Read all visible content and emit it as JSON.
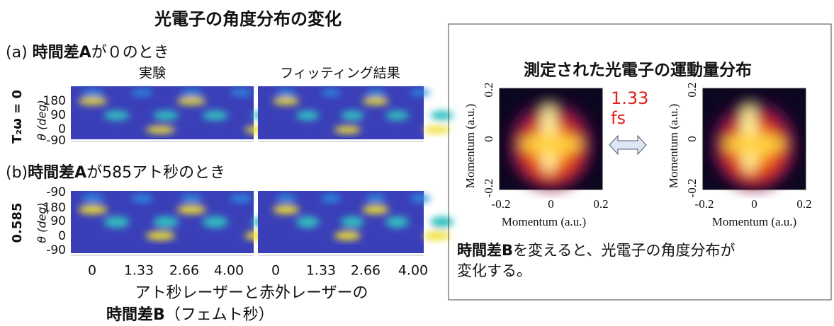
{
  "left": {
    "title": "光電子の角度分布の変化",
    "panel_a": {
      "prefix": "(a)",
      "bold": "時間差A",
      "rest": "が０のとき",
      "row_label": "T₂ω = 0",
      "yticks": [
        "180",
        "90",
        "0",
        "-90"
      ]
    },
    "columns": [
      "実験",
      "フィッティング結果"
    ],
    "y_label": "θ (deg)",
    "panel_b": {
      "prefix": "(b)",
      "bold": "時間差A",
      "rest": "が585アト秒のとき",
      "row_label": "0.585",
      "yticks": [
        "-90",
        "180",
        "90",
        "0",
        "-90"
      ]
    },
    "xticks": [
      "0",
      "1.33",
      "2.66",
      "4.00"
    ],
    "x_title": {
      "line1": "アト秒レーザーと赤外レーザーの",
      "bold": "時間差B",
      "rest": "（フェムト秒）"
    }
  },
  "right": {
    "title": "測定された光電子の運動量分布",
    "delay": "1.33",
    "delay_unit": "fs",
    "axis_label": "Momentum (a.u.)",
    "xticks": [
      "-0.2",
      "0",
      "0.2"
    ],
    "yticks": [
      "0.2",
      "0",
      "-0.2"
    ],
    "caption": {
      "bold": "時間差B",
      "line1": "を変えると、光電子の角度分布が",
      "line2": "変化する。"
    }
  }
}
